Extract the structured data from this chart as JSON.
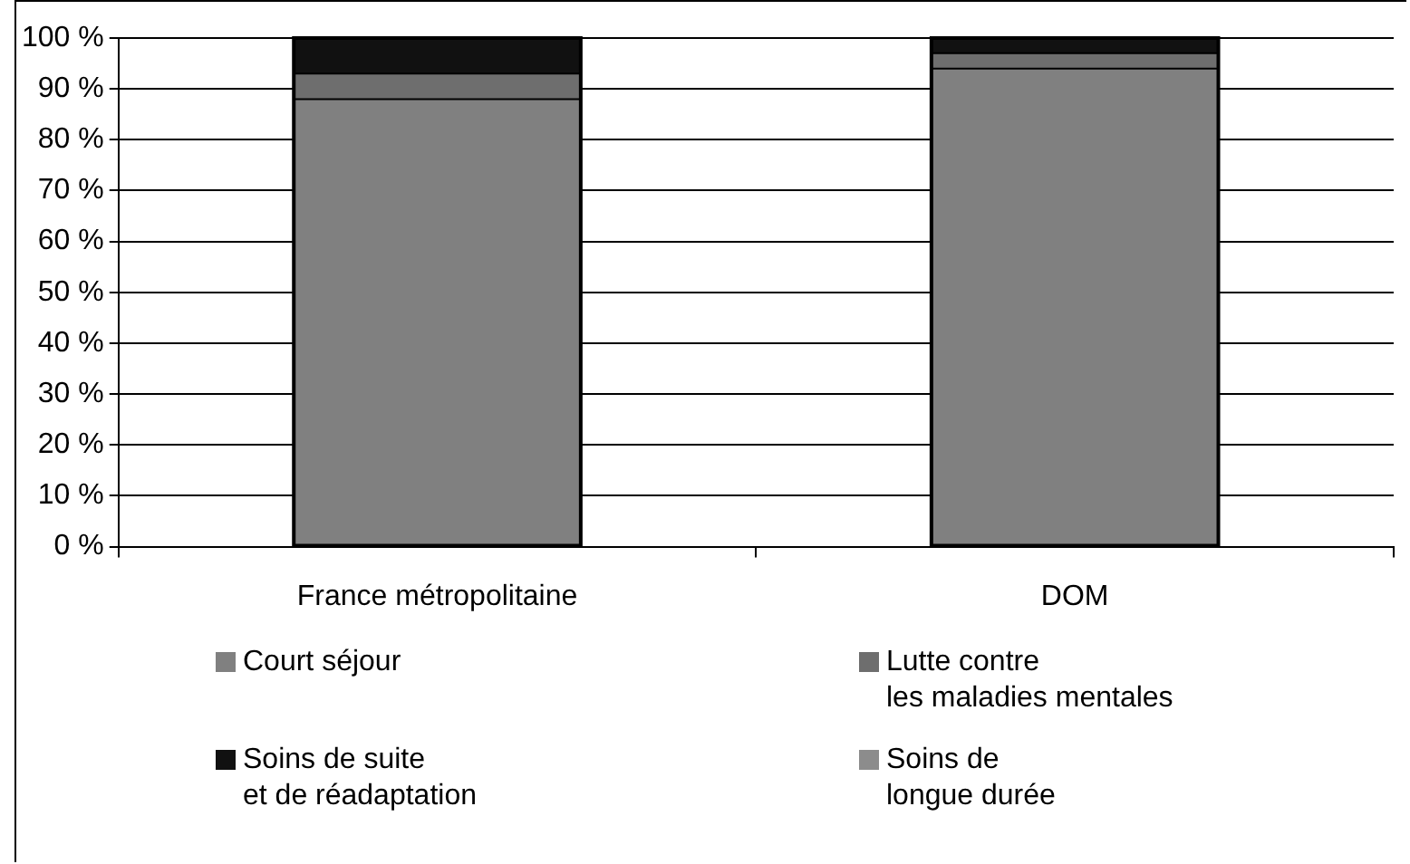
{
  "chart_data": {
    "type": "bar",
    "stacked": true,
    "categories": [
      "France métropolitaine",
      "DOM"
    ],
    "series": [
      {
        "name": "Court séjour",
        "color": "#808080",
        "values": [
          88,
          94
        ]
      },
      {
        "name": "Lutte contre\nles maladies mentales",
        "color": "#6e6e6e",
        "values": [
          5,
          3
        ]
      },
      {
        "name": "Soins de suite\net de réadaptation",
        "color": "#111111",
        "values": [
          7,
          3
        ]
      },
      {
        "name": "Soins de\nlongue durée",
        "color": "#8c8c8c",
        "values": [
          0,
          0
        ]
      }
    ],
    "ylim": [
      0,
      100
    ],
    "yticks": [
      {
        "value": 0,
        "label": "0 %"
      },
      {
        "value": 10,
        "label": "10 %"
      },
      {
        "value": 20,
        "label": "20 %"
      },
      {
        "value": 30,
        "label": "30 %"
      },
      {
        "value": 40,
        "label": "40 %"
      },
      {
        "value": 50,
        "label": "50 %"
      },
      {
        "value": 60,
        "label": "60 %"
      },
      {
        "value": 70,
        "label": "70 %"
      },
      {
        "value": 80,
        "label": "80 %"
      },
      {
        "value": 90,
        "label": "90 %"
      },
      {
        "value": 100,
        "label": "100 %"
      }
    ],
    "grid": "y",
    "legend": "bottom"
  }
}
